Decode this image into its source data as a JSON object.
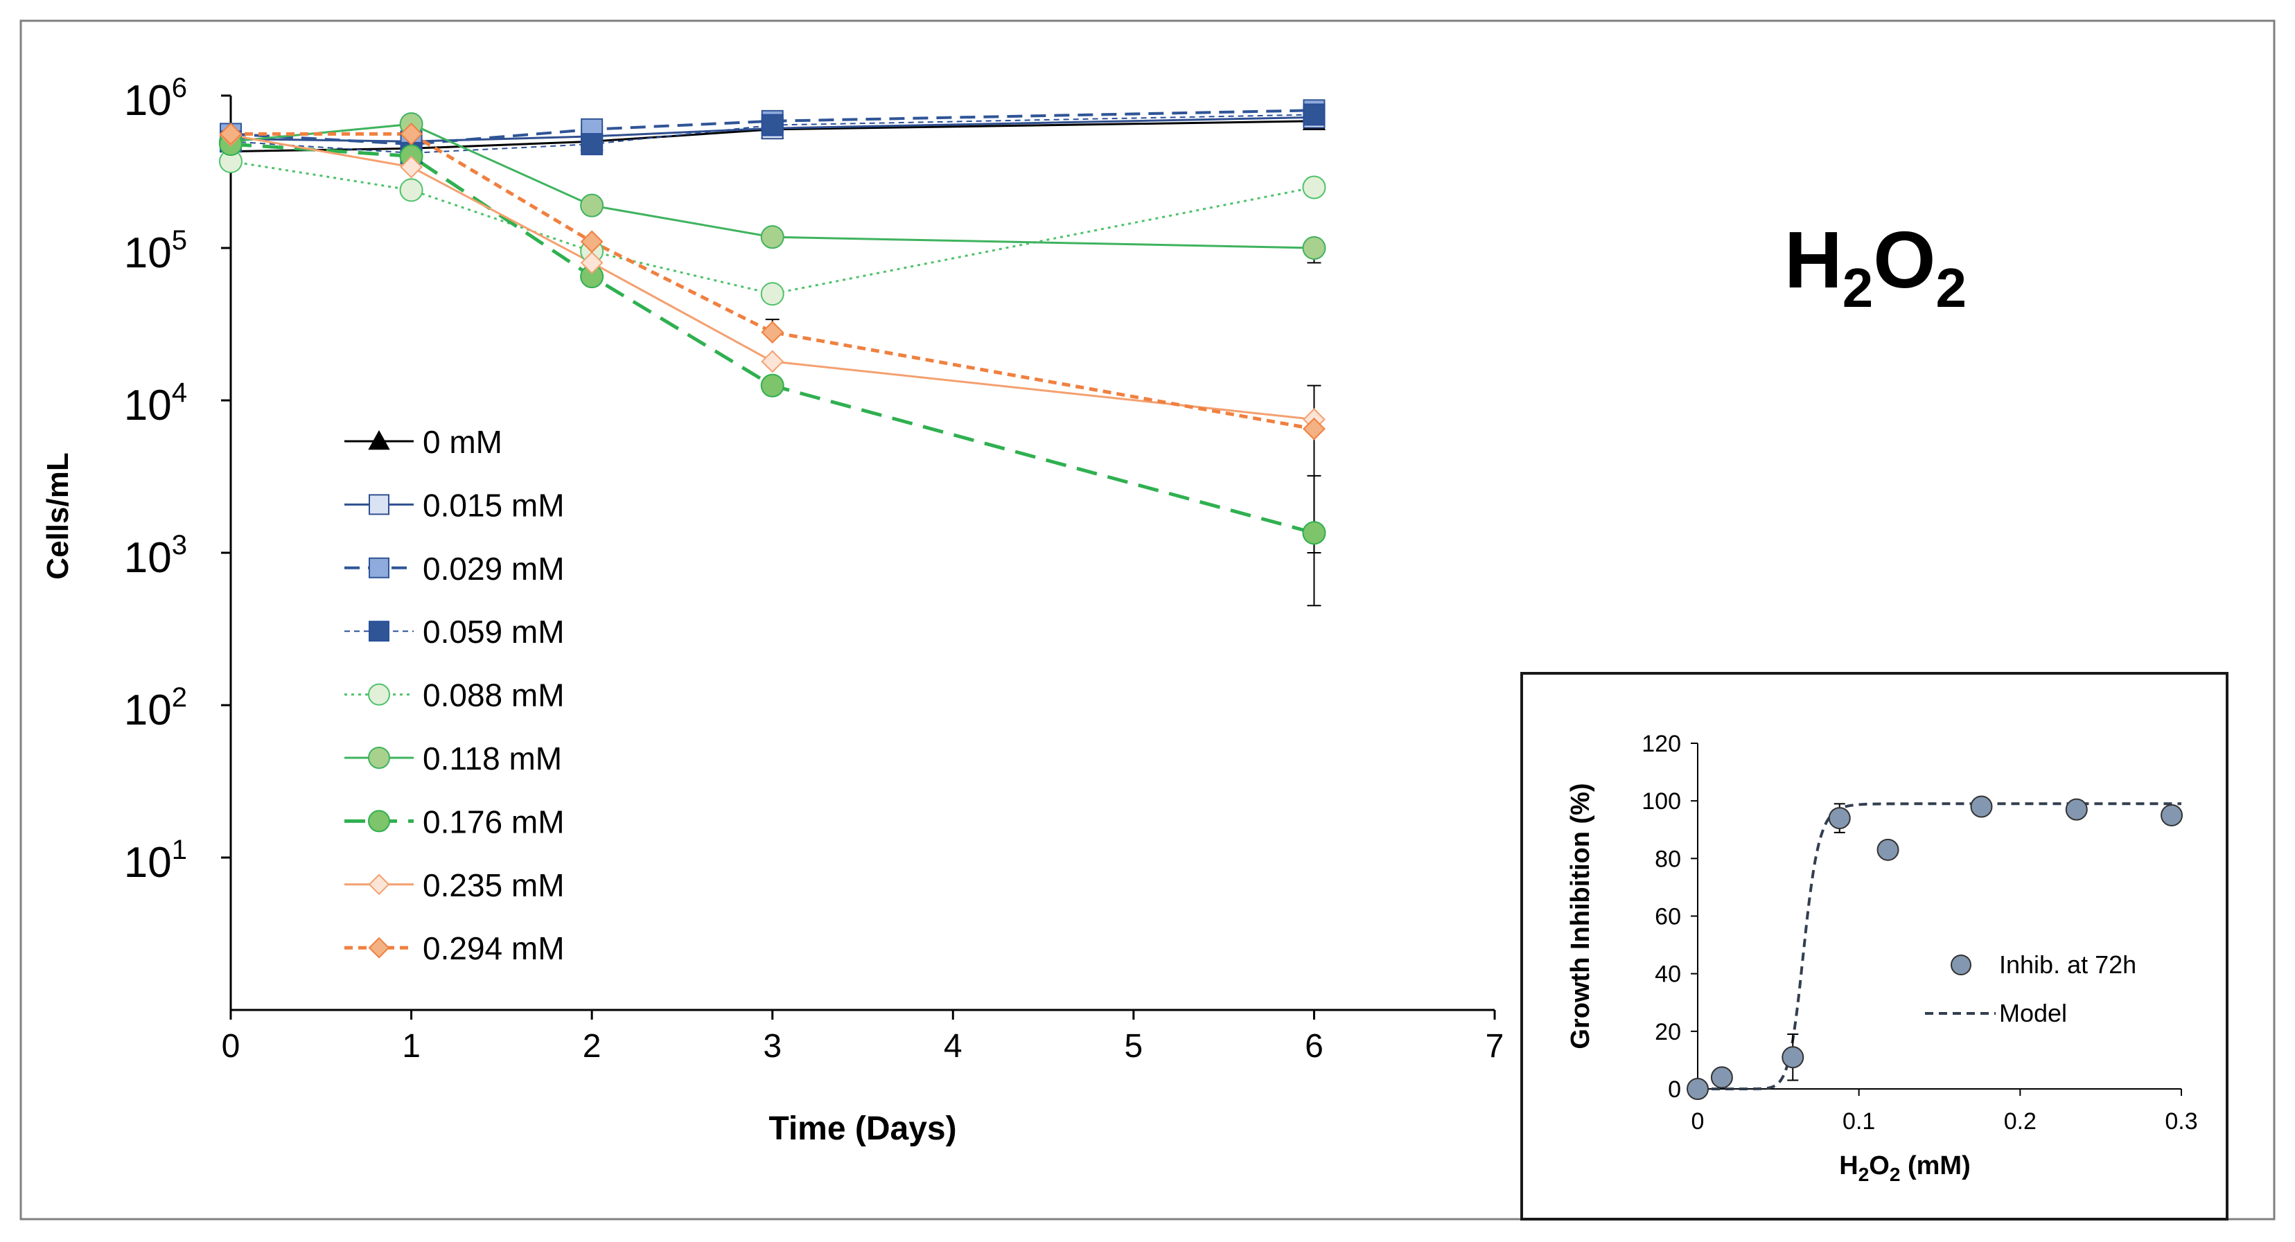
{
  "annotation": {
    "main": "H",
    "sub1": "2",
    "mid": "O",
    "sub2": "2"
  },
  "colors": {
    "axis": "#000000",
    "frame": "#808080",
    "c0": "#000000",
    "c015": "#2f4f8f",
    "c029": "#2f5597",
    "c059": "#2a4f99",
    "c088": "#4fc26a",
    "c118": "#3fb35e",
    "c176": "#2fb050",
    "c235": "#f4a070",
    "c294": "#f08040",
    "inset_marker": "#8497b0",
    "model": "#333f50"
  },
  "chart_data": [
    {
      "type": "line",
      "id": "main",
      "title": "",
      "xlabel": "Time (Days)",
      "ylabel": "Cells/mL",
      "xlim": [
        0,
        7
      ],
      "xticks": [
        0,
        1,
        2,
        3,
        4,
        5,
        6,
        7
      ],
      "ylim": [
        1.0,
        1000000.0
      ],
      "yscale": "log",
      "yticks": [
        {
          "value": 10,
          "base": "10",
          "exp": "1"
        },
        {
          "value": 100,
          "base": "10",
          "exp": "2"
        },
        {
          "value": 1000,
          "base": "10",
          "exp": "3"
        },
        {
          "value": 10000,
          "base": "10",
          "exp": "4"
        },
        {
          "value": 100000,
          "base": "10",
          "exp": "5"
        },
        {
          "value": 1000000,
          "base": "10",
          "exp": "6"
        }
      ],
      "legend_position": "lower-left",
      "series": [
        {
          "name": "0 mM",
          "colorKey": "c0",
          "marker": "triangle",
          "fill": "#000000",
          "dash": "",
          "width": 3,
          "points": [
            [
              0,
              430000
            ],
            [
              1,
              450000
            ],
            [
              2,
              500000
            ],
            [
              3,
              600000
            ],
            [
              6,
              680000
            ]
          ]
        },
        {
          "name": "0.015 mM",
          "colorKey": "c015",
          "marker": "square",
          "fill": "#dae3f3",
          "dash": "",
          "width": 3,
          "points": [
            [
              0,
              520000
            ],
            [
              1,
              500000
            ],
            [
              2,
              540000
            ],
            [
              3,
              610000
            ],
            [
              6,
              720000
            ]
          ]
        },
        {
          "name": "0.029 mM",
          "colorKey": "c029",
          "marker": "square",
          "fill": "#8faadc",
          "dash": "22,12",
          "width": 4,
          "points": [
            [
              0,
              560000
            ],
            [
              1,
              480000
            ],
            [
              2,
              600000
            ],
            [
              3,
              680000
            ],
            [
              6,
              800000
            ]
          ]
        },
        {
          "name": "0.059 mM",
          "colorKey": "c059",
          "marker": "square",
          "fill": "#2f5597",
          "dash": "8,6",
          "width": 2,
          "points": [
            [
              0,
              500000
            ],
            [
              1,
              420000
            ],
            [
              2,
              480000
            ],
            [
              3,
              640000
            ],
            [
              6,
              750000
            ]
          ]
        },
        {
          "name": "0.088 mM",
          "colorKey": "c088",
          "marker": "circle",
          "fill": "#e2f0d9",
          "dash": "4,6",
          "width": 3,
          "points": [
            [
              0,
              370000
            ],
            [
              1,
              240000
            ],
            [
              2,
              95000
            ],
            [
              3,
              50000
            ],
            [
              6,
              250000
            ]
          ]
        },
        {
          "name": "0.118 mM",
          "colorKey": "c118",
          "marker": "circle",
          "fill": "#a9d18e",
          "dash": "",
          "width": 3,
          "points": [
            [
              0,
              500000
            ],
            [
              1,
              650000
            ],
            [
              2,
              190000
            ],
            [
              3,
              118000
            ],
            [
              6,
              100000
            ]
          ]
        },
        {
          "name": "0.176 mM",
          "colorKey": "c176",
          "marker": "circle",
          "fill": "#7ec46a",
          "dash": "30,16",
          "width": 5,
          "points": [
            [
              0,
              480000
            ],
            [
              1,
              400000
            ],
            [
              2,
              65000
            ],
            [
              3,
              12500
            ],
            [
              6,
              1350
            ]
          ]
        },
        {
          "name": "0.235 mM",
          "colorKey": "c235",
          "marker": "diamond",
          "fill": "#fce4d6",
          "dash": "",
          "width": 3,
          "points": [
            [
              0,
              550000
            ],
            [
              1,
              340000
            ],
            [
              2,
              80000
            ],
            [
              3,
              18000
            ],
            [
              6,
              7500
            ]
          ]
        },
        {
          "name": "0.294 mM",
          "colorKey": "c294",
          "marker": "diamond",
          "fill": "#f4b183",
          "dash": "12,8",
          "width": 5,
          "points": [
            [
              0,
              560000
            ],
            [
              1,
              560000
            ],
            [
              2,
              110000
            ],
            [
              3,
              28000
            ],
            [
              6,
              6500
            ]
          ]
        }
      ],
      "error_bars": [
        {
          "x": 6,
          "low": 450,
          "high": 3200
        },
        {
          "x": 6,
          "low": 1000,
          "high": 12500
        },
        {
          "x": 6,
          "low": 80000,
          "high": 100000
        },
        {
          "x": 3,
          "low": 27000,
          "high": 34000
        }
      ]
    },
    {
      "type": "scatter",
      "id": "inset",
      "title": "",
      "xlabel_main": "H",
      "xlabel_sub1": "2",
      "xlabel_mid": "O",
      "xlabel_sub2": "2",
      "xlabel_rest": " (mM)",
      "ylabel": "Growth Inhibition (%)",
      "xlim": [
        0,
        0.3
      ],
      "xticks": [
        {
          "v": 0,
          "label": "0"
        },
        {
          "v": 0.1,
          "label": "0.1"
        },
        {
          "v": 0.2,
          "label": "0.2"
        },
        {
          "v": 0.3,
          "label": "0.3"
        }
      ],
      "ylim": [
        0,
        120
      ],
      "yticks": [
        0,
        20,
        40,
        60,
        80,
        100,
        120
      ],
      "legend": {
        "points": "Inhib. at 72h",
        "model": "Model"
      },
      "legend_position": "right",
      "points": [
        {
          "x": 0,
          "y": 0,
          "err": 0
        },
        {
          "x": 0.015,
          "y": 4,
          "err": 0
        },
        {
          "x": 0.059,
          "y": 11,
          "err": 8
        },
        {
          "x": 0.088,
          "y": 94,
          "err": 5
        },
        {
          "x": 0.118,
          "y": 83,
          "err": 0
        },
        {
          "x": 0.176,
          "y": 98,
          "err": 0
        },
        {
          "x": 0.235,
          "y": 97,
          "err": 0
        },
        {
          "x": 0.294,
          "y": 95,
          "err": 0
        }
      ],
      "model": {
        "top": 99,
        "ec50": 0.066,
        "hill": 14
      }
    }
  ]
}
